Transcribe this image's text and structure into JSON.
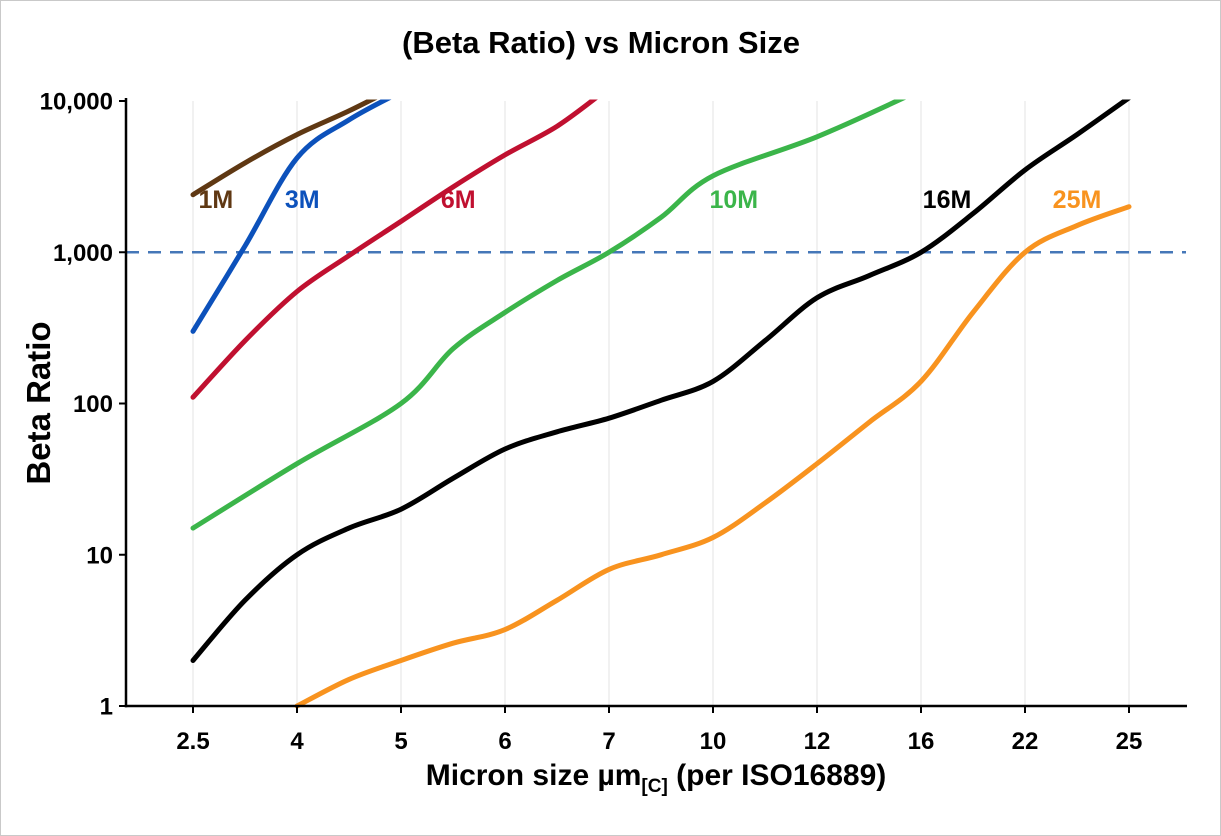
{
  "chart": {
    "title": "(Beta Ratio) vs Micron Size",
    "y_axis_label": "Beta Ratio",
    "x_axis_label": {
      "main": "Micron size µm",
      "sub": "[C]",
      "rest": " (per ISO16889)"
    }
  },
  "chart_data": {
    "type": "line",
    "title": "(Beta Ratio) vs Micron Size",
    "xlabel": "Micron size µm[C] (per ISO16889)",
    "ylabel": "Beta Ratio",
    "x_scale": "categorical",
    "y_scale": "log",
    "ylim": [
      1,
      10000
    ],
    "grid": {
      "vertical": true,
      "horizontal": false,
      "color": "#e3e3e3"
    },
    "legend_position": "inline-labels",
    "x_ticks": [
      "2.5",
      "4",
      "5",
      "6",
      "7",
      "10",
      "12",
      "16",
      "22",
      "25"
    ],
    "y_ticks": [
      {
        "value": 10000,
        "label": "10,000"
      },
      {
        "value": 1000,
        "label": "1,000"
      },
      {
        "value": 100,
        "label": "100"
      },
      {
        "value": 10,
        "label": "10"
      },
      {
        "value": 1,
        "label": "1"
      }
    ],
    "reference_line": {
      "value": 1000,
      "color": "#4577b8",
      "style": "dashed"
    },
    "series": [
      {
        "name": "1M",
        "color": "#5f3813",
        "label": {
          "x_index": 0.22,
          "value": 2250
        },
        "points": [
          [
            0,
            2400
          ],
          [
            0.5,
            3900
          ],
          [
            1,
            6000
          ],
          [
            1.5,
            8600
          ],
          [
            2,
            12800
          ]
        ]
      },
      {
        "name": "3M",
        "color": "#0c51bb",
        "label": {
          "x_index": 1.05,
          "value": 2250
        },
        "points": [
          [
            0,
            300
          ],
          [
            0.5,
            1100
          ],
          [
            1,
            4200
          ],
          [
            1.5,
            7500
          ],
          [
            2,
            11500
          ]
        ]
      },
      {
        "name": "6M",
        "color": "#c01030",
        "label": {
          "x_index": 2.55,
          "value": 2250
        },
        "points": [
          [
            0,
            110
          ],
          [
            0.5,
            260
          ],
          [
            1,
            550
          ],
          [
            1.5,
            950
          ],
          [
            2,
            1600
          ],
          [
            2.5,
            2700
          ],
          [
            3,
            4400
          ],
          [
            3.5,
            6800
          ],
          [
            3.95,
            11500
          ]
        ]
      },
      {
        "name": "10M",
        "color": "#3bb54a",
        "label": {
          "x_index": 5.2,
          "value": 2250
        },
        "points": [
          [
            0,
            15
          ],
          [
            1,
            40
          ],
          [
            2,
            100
          ],
          [
            2.5,
            230
          ],
          [
            3,
            400
          ],
          [
            3.5,
            650
          ],
          [
            4,
            1000
          ],
          [
            4.5,
            1700
          ],
          [
            5,
            3200
          ],
          [
            6,
            5800
          ],
          [
            6.9,
            11000
          ]
        ]
      },
      {
        "name": "16M",
        "color": "#000000",
        "label": {
          "x_index": 7.25,
          "value": 2250
        },
        "points": [
          [
            0,
            2
          ],
          [
            0.5,
            5
          ],
          [
            1,
            10
          ],
          [
            1.5,
            15
          ],
          [
            2,
            20
          ],
          [
            2.5,
            32
          ],
          [
            3,
            50
          ],
          [
            3.5,
            65
          ],
          [
            4,
            80
          ],
          [
            4.5,
            105
          ],
          [
            5,
            140
          ],
          [
            5.5,
            260
          ],
          [
            6,
            500
          ],
          [
            6.5,
            700
          ],
          [
            7,
            1000
          ],
          [
            7.5,
            1800
          ],
          [
            8,
            3500
          ],
          [
            8.5,
            6000
          ],
          [
            9,
            10500
          ]
        ]
      },
      {
        "name": "25M",
        "color": "#f8931f",
        "label": {
          "x_index": 8.5,
          "value": 2250
        },
        "points": [
          [
            1,
            1
          ],
          [
            1.5,
            1.5
          ],
          [
            2,
            2
          ],
          [
            2.5,
            2.6
          ],
          [
            3,
            3.2
          ],
          [
            3.5,
            5
          ],
          [
            4,
            8
          ],
          [
            4.5,
            10
          ],
          [
            5,
            13
          ],
          [
            5.5,
            22
          ],
          [
            6,
            40
          ],
          [
            6.5,
            75
          ],
          [
            7,
            140
          ],
          [
            7.5,
            400
          ],
          [
            8,
            1000
          ],
          [
            8.5,
            1500
          ],
          [
            9,
            2000
          ]
        ]
      }
    ]
  }
}
